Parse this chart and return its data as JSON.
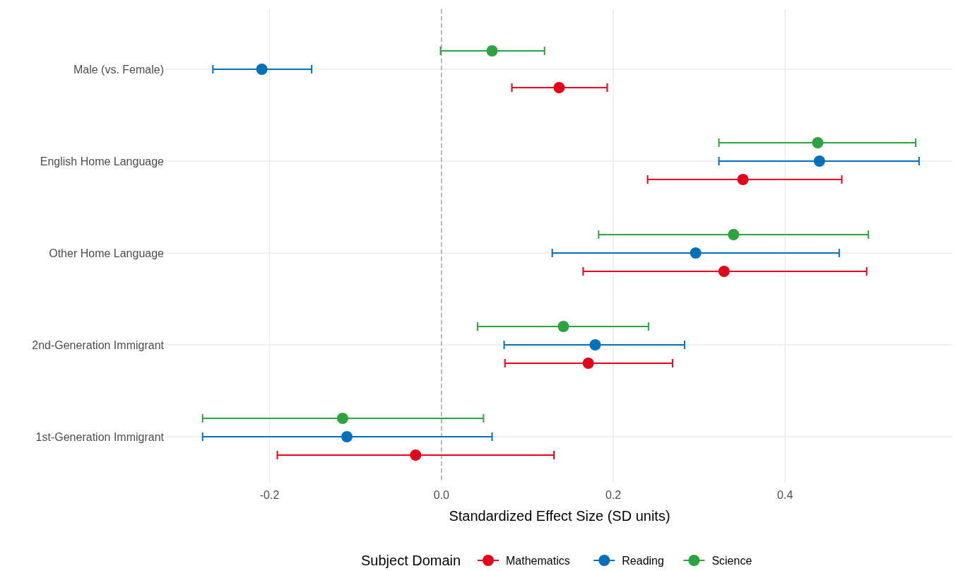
{
  "chart_data": {
    "type": "scatter",
    "orientation": "horizontal",
    "xlabel": "Standardized Effect Size (SD units)",
    "legend_title": "Subject Domain",
    "legend": "bottom",
    "grid": true,
    "marker": "circle",
    "categories": [
      "Male (vs. Female)",
      "English Home Language",
      "Other Home Language",
      "2nd-Generation Immigrant",
      "1st-Generation Immigrant"
    ],
    "xlim": [
      -0.323,
      0.598
    ],
    "xticks": [
      {
        "value": -0.2,
        "label": "-0.2"
      },
      {
        "value": 0,
        "label": "0.0"
      },
      {
        "value": 0.2,
        "label": "0.2"
      },
      {
        "value": 0.4,
        "label": "0.4"
      }
    ],
    "series": [
      {
        "name": "Mathematics",
        "color": "#e3001b",
        "values": [
          0.137,
          0.351,
          0.329,
          0.171,
          -0.03
        ],
        "errors": [
          [
            0.082,
            0.193
          ],
          [
            0.24,
            0.466
          ],
          [
            0.165,
            0.495
          ],
          [
            0.074,
            0.269
          ],
          [
            -0.191,
            0.131
          ]
        ]
      },
      {
        "name": "Reading",
        "color": "#0070b8",
        "values": [
          -0.209,
          0.44,
          0.296,
          0.179,
          -0.11
        ],
        "errors": [
          [
            -0.266,
            -0.151
          ],
          [
            0.323,
            0.556
          ],
          [
            0.129,
            0.463
          ],
          [
            0.073,
            0.283
          ],
          [
            -0.278,
            0.059
          ]
        ]
      },
      {
        "name": "Science",
        "color": "#2ca340",
        "values": [
          0.059,
          0.438,
          0.34,
          0.142,
          -0.115
        ],
        "errors": [
          [
            -0.001,
            0.12
          ],
          [
            0.323,
            0.552
          ],
          [
            0.183,
            0.497
          ],
          [
            0.042,
            0.241
          ],
          [
            -0.278,
            0.049
          ]
        ]
      }
    ],
    "ref_lines": [
      {
        "axis": "x",
        "value": 0,
        "color": "#a6a6a6",
        "line_style": "dashed"
      }
    ]
  }
}
